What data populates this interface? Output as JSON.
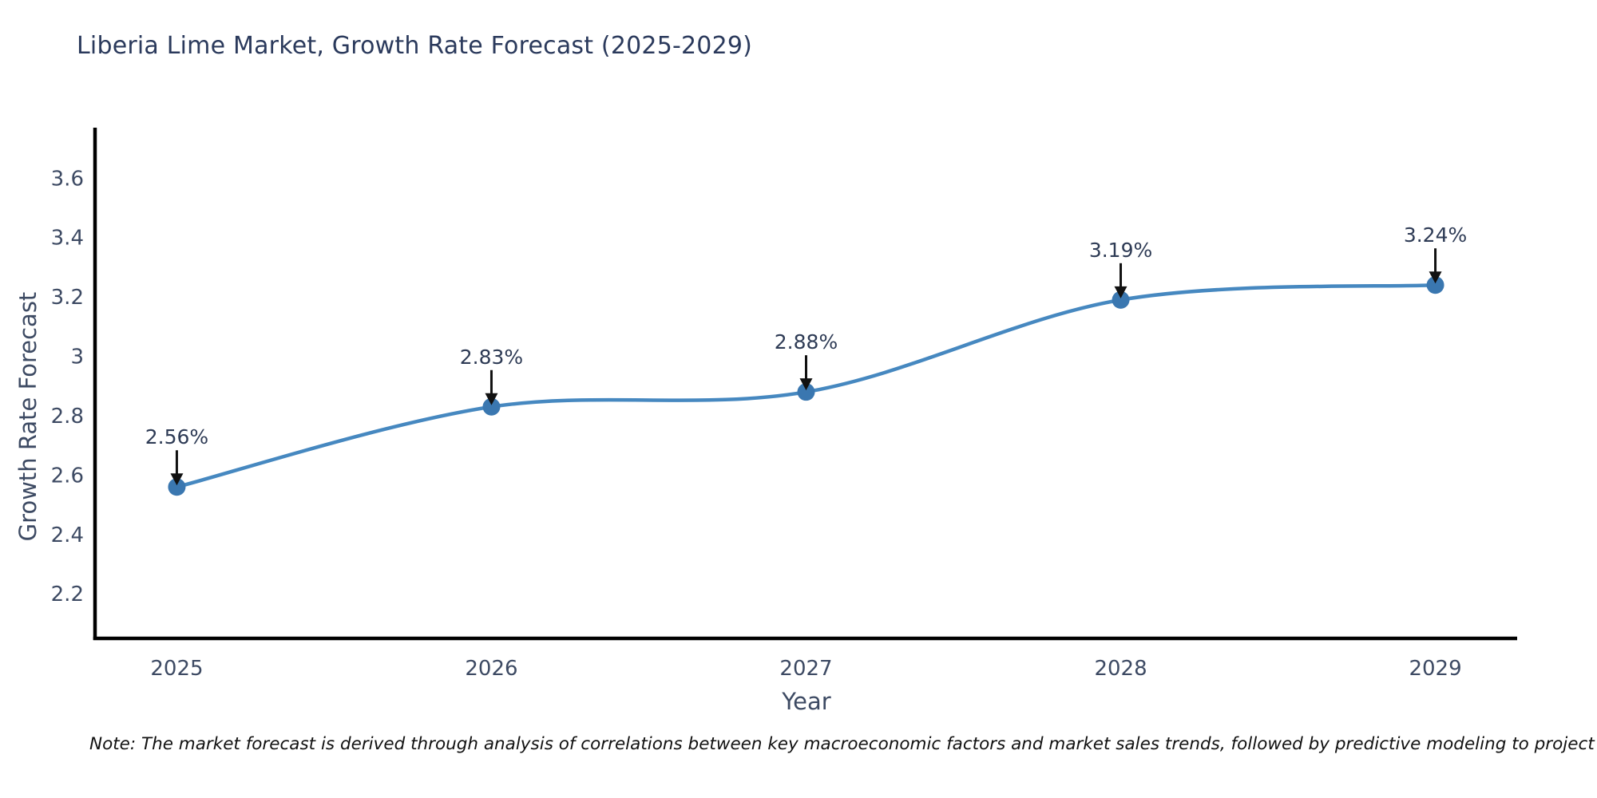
{
  "chart": {
    "title": "Liberia Lime Market, Growth Rate Forecast (2025-2029)",
    "xlabel": "Year",
    "ylabel": "Growth Rate Forecast"
  },
  "chart_data": {
    "type": "line",
    "title": "Liberia Lime Market, Growth Rate Forecast (2025-2029)",
    "xlabel": "Year",
    "ylabel": "Growth Rate Forecast",
    "categories": [
      "2025",
      "2026",
      "2027",
      "2028",
      "2029"
    ],
    "x": [
      2025,
      2026,
      2027,
      2028,
      2029
    ],
    "series": [
      {
        "name": "Growth Rate Forecast",
        "values": [
          2.56,
          2.83,
          2.88,
          3.19,
          3.24
        ]
      }
    ],
    "point_labels": [
      "2.56%",
      "2.83%",
      "2.88%",
      "3.19%",
      "3.24%"
    ],
    "yticks": [
      2.2,
      2.4,
      2.6,
      2.8,
      3,
      3.2,
      3.4,
      3.6
    ],
    "ytick_labels": [
      "2.2",
      "2.4",
      "2.6",
      "2.8",
      "3",
      "3.2",
      "3.4",
      "3.6"
    ],
    "ylim": [
      2.05,
      3.77
    ],
    "xlim": [
      2024.74,
      2029.26
    ],
    "grid": false,
    "legend": false,
    "line_shape": "spline",
    "annotation_style": "value label with downward arrow at each data point",
    "colors": {
      "line": "#4688c0",
      "marker": "#3a77b0",
      "axis": "#000000",
      "arrow": "#111111",
      "title_text": "#2b3a5c",
      "tick_text": "#3d4a63",
      "annotation_text": "#2e3b55"
    }
  },
  "note": "Note: The market forecast is derived through analysis of correlations between key macroeconomic factors and market sales trends, followed by predictive modeling to project future sales"
}
